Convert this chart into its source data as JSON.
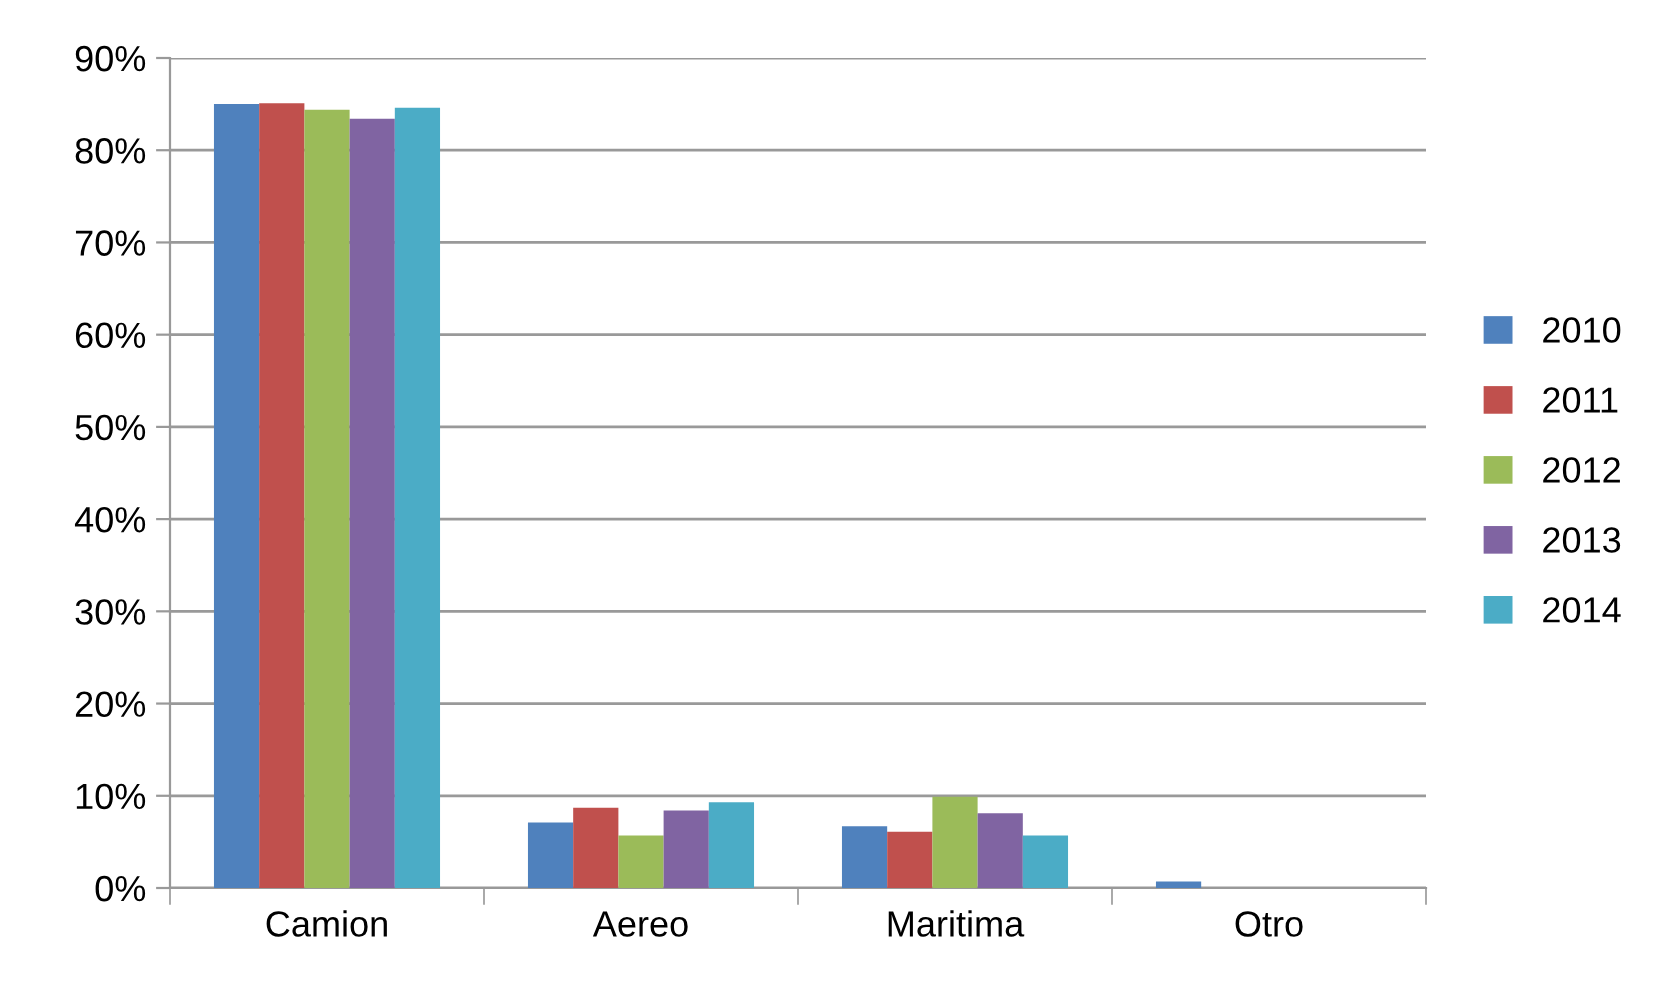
{
  "chart_data": {
    "type": "bar",
    "categories": [
      "Camion",
      "Aereo",
      "Maritima",
      "Otro"
    ],
    "series": [
      {
        "name": "2010",
        "color": "#4f81bd",
        "values": [
          85.0,
          7.1,
          6.7,
          0.7
        ]
      },
      {
        "name": "2011",
        "color": "#c0504d",
        "values": [
          85.1,
          8.7,
          6.1,
          0
        ]
      },
      {
        "name": "2012",
        "color": "#9bbb59",
        "values": [
          84.4,
          5.7,
          9.9,
          0
        ]
      },
      {
        "name": "2013",
        "color": "#8064a2",
        "values": [
          83.4,
          8.4,
          8.1,
          0
        ]
      },
      {
        "name": "2014",
        "color": "#4bacc6",
        "values": [
          84.6,
          9.3,
          5.7,
          0
        ]
      }
    ],
    "ylim": [
      0,
      90
    ],
    "yticks": [
      {
        "value": 0,
        "label": "0%"
      },
      {
        "value": 10,
        "label": "10%"
      },
      {
        "value": 20,
        "label": "20%"
      },
      {
        "value": 30,
        "label": "30%"
      },
      {
        "value": 40,
        "label": "40%"
      },
      {
        "value": 50,
        "label": "50%"
      },
      {
        "value": 60,
        "label": "60%"
      },
      {
        "value": 70,
        "label": "70%"
      },
      {
        "value": 80,
        "label": "80%"
      },
      {
        "value": 90,
        "label": "90%"
      }
    ],
    "grid": "y",
    "legend": "right"
  }
}
